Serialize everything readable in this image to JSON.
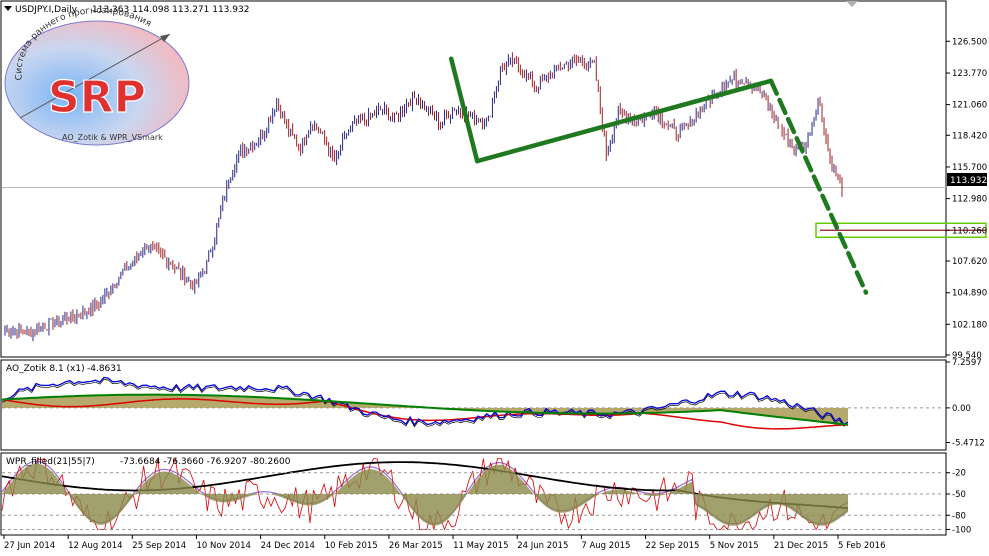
{
  "chart_data": {
    "type": "candlestick",
    "main": {
      "title": "USDJPY.I,Daily",
      "ohlc_header": "113.363 114.098 113.271 113.932",
      "ylim": [
        99.54,
        128.5
      ],
      "y_ticks": [
        "126.500",
        "123.770",
        "121.060",
        "118.420",
        "115.700",
        "112.980",
        "110.260",
        "107.620",
        "104.890",
        "102.180",
        "99.540"
      ],
      "current_price": "113.932",
      "support_level": 110.26,
      "close_series": [
        101.6,
        101.7,
        101.5,
        101.9,
        102.3,
        102.6,
        102.9,
        103.3,
        104.0,
        105.3,
        106.7,
        107.7,
        109.0,
        108.3,
        107.5,
        106.5,
        105.4,
        107.0,
        110.5,
        114.8,
        117.2,
        117.6,
        118.6,
        121.3,
        119.0,
        117.2,
        119.6,
        118.3,
        116.1,
        118.7,
        119.6,
        120.0,
        120.7,
        119.8,
        121.1,
        121.8,
        120.3,
        119.4,
        120.8,
        120.3,
        119.8,
        119.7,
        124.0,
        124.8,
        123.8,
        122.5,
        123.4,
        124.2,
        124.8,
        124.7,
        124.4,
        116.8,
        120.3,
        119.9,
        119.7,
        120.7,
        119.6,
        118.6,
        119.3,
        120.7,
        121.7,
        122.9,
        123.3,
        123.1,
        122.3,
        120.5,
        118.6,
        117.0,
        117.8,
        121.5,
        116.3,
        113.9
      ],
      "zigzag_points": [
        [
          0.3,
          125.0
        ],
        [
          0.55,
          116.2
        ],
        [
          0.89,
          123.1
        ],
        [
          1.0,
          104.9
        ]
      ]
    },
    "oscillators": [
      {
        "name": "AO_Zotik 8.1 (x1)",
        "value": "-4.8631",
        "ylim": [
          -6.5,
          7.2597
        ],
        "y_ticks": [
          "7.2597",
          "0.00",
          "-5.4712"
        ],
        "series": [
          {
            "name": "fast",
            "color": "#0000dd"
          },
          {
            "name": "slow",
            "color": "#008000"
          },
          {
            "name": "signal",
            "color": "#dd0000"
          }
        ]
      },
      {
        "name": "WPR_filled(21|55|7)",
        "value": "-73.6684 -76.3660 -76.9207 -80.2600",
        "ylim": [
          -105,
          5
        ],
        "y_ticks": [
          "-20",
          "-50",
          "-80",
          "-100"
        ]
      }
    ],
    "x_ticks": [
      "27 Jun 2014",
      "12 Aug 2014",
      "25 Sep 2014",
      "10 Nov 2014",
      "24 Dec 2014",
      "10 Feb 2015",
      "26 Mar 2015",
      "11 May 2015",
      "24 Jun 2015",
      "7 Aug 2015",
      "22 Sep 2015",
      "5 Nov 2015",
      "21 Dec 2015",
      "5 Feb 2016"
    ]
  },
  "logo": {
    "text": "SRP",
    "arc_text": "Система раннего прогнозирования",
    "credit": "AO_Zotik & WPR_VSmark"
  },
  "colors": {
    "bull": "#27278a",
    "bear": "#a02020",
    "trend": "#1f7a1f",
    "support": "#8a1a1a",
    "support_box": "#66cc00"
  }
}
